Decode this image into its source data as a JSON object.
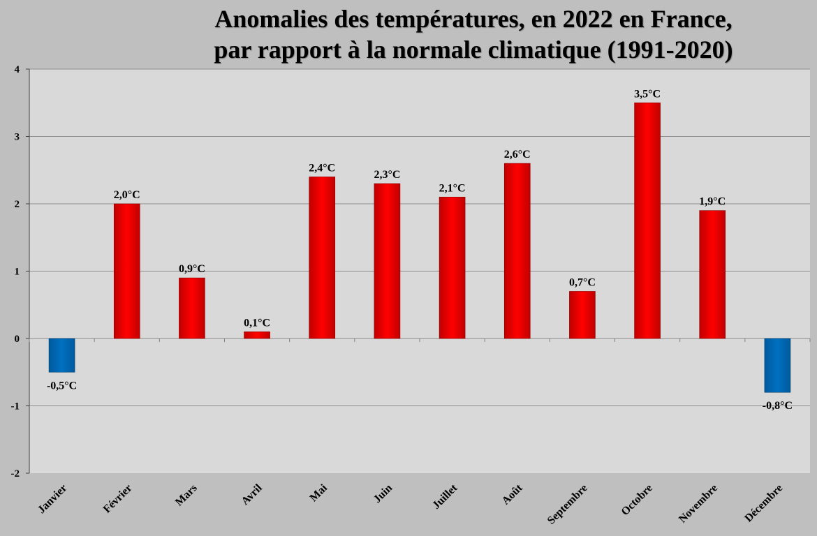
{
  "chart_data": {
    "type": "bar",
    "title": [
      "Anomalies des températures, en 2022 en France,",
      "par rapport à la normale climatique (1991-2020)"
    ],
    "xlabel": "",
    "ylabel": "",
    "categories": [
      "Janvier",
      "Février",
      "Mars",
      "Avril",
      "Mai",
      "Juin",
      "Juillet",
      "Août",
      "Septembre",
      "Octobre",
      "Novembre",
      "Décembre"
    ],
    "values": [
      -0.5,
      2.0,
      0.9,
      0.1,
      2.4,
      2.3,
      2.1,
      2.6,
      0.7,
      3.5,
      1.9,
      -0.8
    ],
    "data_labels": [
      "-0,5°C",
      "2,0°C",
      "0,9°C",
      "0,1°C",
      "2,4°C",
      "2,3°C",
      "2,1°C",
      "2,6°C",
      "0,7°C",
      "3,5°C",
      "1,9°C",
      "-0,8°C"
    ],
    "ylim": [
      -2,
      4
    ],
    "yticks": [
      "4",
      "3",
      "2",
      "1",
      "0",
      "-1",
      "-2"
    ],
    "grid": true,
    "legend": "none",
    "colors": {
      "positive": "#ff0000",
      "negative": "#0070c0",
      "plot_bg": "#d9d9d9",
      "page_bg": "#bfbfbf",
      "grid": "#8c8c8c"
    }
  }
}
